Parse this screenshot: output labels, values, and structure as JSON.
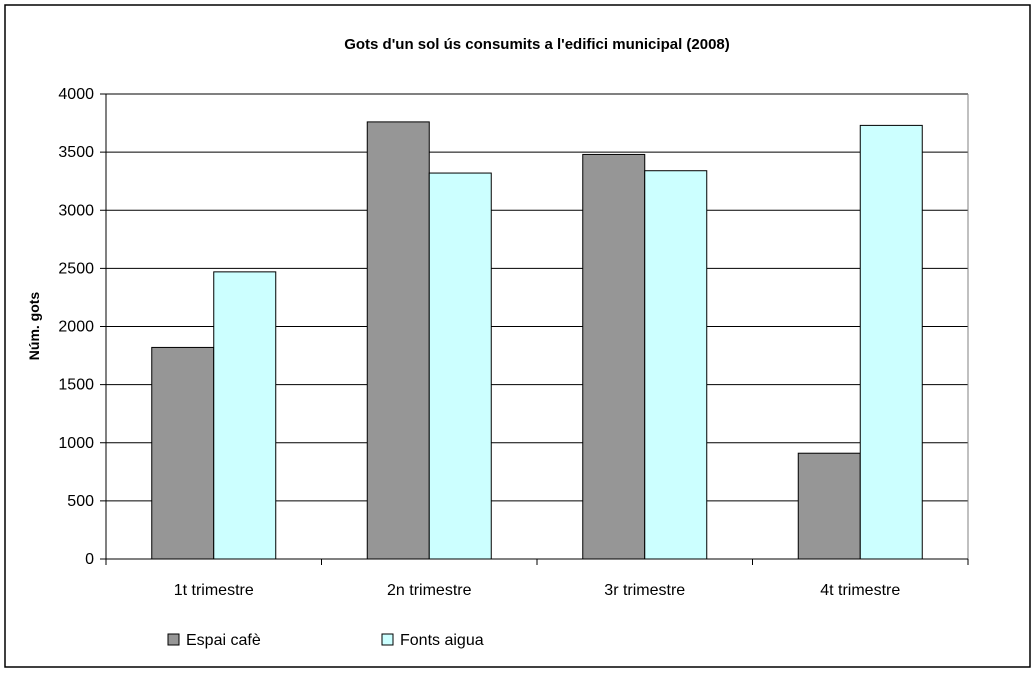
{
  "chart_data": {
    "type": "bar",
    "title": "Gots d'un sol ús consumits a l'edifici municipal (2008)",
    "xlabel": "",
    "ylabel": "Núm. gots",
    "ylim": [
      0,
      4000
    ],
    "yticks": [
      0,
      500,
      1000,
      1500,
      2000,
      2500,
      3000,
      3500,
      4000
    ],
    "grid": true,
    "legend_position": "bottom",
    "categories": [
      "1t trimestre",
      "2n trimestre",
      "3r trimestre",
      "4t trimestre"
    ],
    "series": [
      {
        "name": "Espai cafè",
        "color": "#969696",
        "values": [
          1820,
          3760,
          3480,
          910
        ]
      },
      {
        "name": "Fonts aigua",
        "color": "#ccffff",
        "values": [
          2470,
          3320,
          3340,
          3730
        ]
      }
    ]
  }
}
